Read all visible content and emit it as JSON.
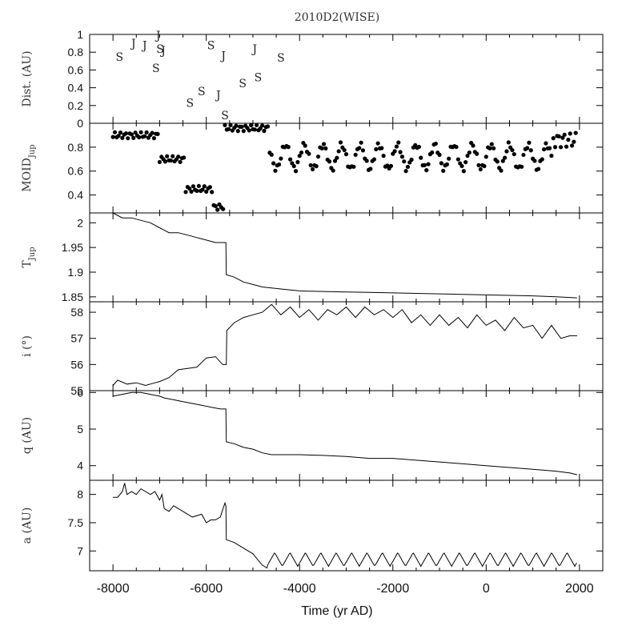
{
  "title": "2010D2(WISE)",
  "xlabel": "Time (yr AD)",
  "x_ticks": [
    "-8000",
    "-6000",
    "-4000",
    "-2000",
    "0",
    "2000"
  ],
  "chart_data": [
    {
      "type": "scatter",
      "ylabel": "Dist. (AU)",
      "ylim": [
        0,
        1
      ],
      "yticks": [
        "0",
        "0.2",
        "0.4",
        "0.6",
        "0.8",
        "1"
      ],
      "encounters": [
        {
          "x": -7860,
          "y": 0.75,
          "label": "S"
        },
        {
          "x": -7560,
          "y": 0.9,
          "label": "J"
        },
        {
          "x": -7320,
          "y": 0.88,
          "label": "J"
        },
        {
          "x": -7080,
          "y": 0.62,
          "label": "S"
        },
        {
          "x": -7030,
          "y": 0.99,
          "label": "J"
        },
        {
          "x": -6990,
          "y": 0.84,
          "label": "S"
        },
        {
          "x": -6920,
          "y": 0.82,
          "label": "J"
        },
        {
          "x": -6350,
          "y": 0.23,
          "label": "S"
        },
        {
          "x": -6100,
          "y": 0.36,
          "label": "S"
        },
        {
          "x": -5900,
          "y": 0.88,
          "label": "S"
        },
        {
          "x": -5740,
          "y": 0.32,
          "label": "J"
        },
        {
          "x": -5630,
          "y": 0.76,
          "label": "J"
        },
        {
          "x": -5600,
          "y": 0.09,
          "label": "S"
        },
        {
          "x": -5220,
          "y": 0.45,
          "label": "S"
        },
        {
          "x": -4960,
          "y": 0.84,
          "label": "J"
        },
        {
          "x": -4890,
          "y": 0.52,
          "label": "S"
        },
        {
          "x": -4400,
          "y": 0.74,
          "label": "S"
        }
      ]
    },
    {
      "type": "scatter",
      "ylabel": "MOID",
      "ylabel_sub": "Jup",
      "ylim": [
        0.25,
        1.0
      ],
      "yticks": [
        "0.4",
        "0.6",
        "0.8"
      ],
      "x_range": [
        -8000,
        1950
      ],
      "step": 40,
      "points": [
        [
          -8000,
          -7000,
          0.9,
          0.0,
          0,
          0
        ],
        [
          -7000,
          -6450,
          0.7,
          0.0,
          0,
          0
        ],
        [
          -6450,
          -5850,
          0.45,
          0.0,
          0,
          0
        ],
        [
          -5850,
          -5620,
          0.3,
          0.0,
          0,
          0
        ],
        [
          -5620,
          -4650,
          0.96,
          0.0,
          0,
          0
        ],
        [
          -4650,
          1950,
          0.72,
          0.1,
          400,
          0
        ]
      ],
      "note_points": "piecewise description: [x_start, x_end, mean_level, oscillation_amplitude, period_years, phase]"
    },
    {
      "type": "line",
      "ylabel": "T",
      "ylabel_sub": "Jup",
      "ylim": [
        1.84,
        2.02
      ],
      "yticks": [
        "1.85",
        "1.9",
        "1.95",
        "2"
      ],
      "x": [
        -8000,
        -7800,
        -7600,
        -7400,
        -7200,
        -7000,
        -6900,
        -6800,
        -6600,
        -6400,
        -6200,
        -6000,
        -5800,
        -5700,
        -5580,
        -5570,
        -5400,
        -5300,
        -5200,
        -5000,
        -4800,
        -4600,
        -4400,
        -4000,
        -3500,
        -3000,
        -2500,
        -2000,
        -1500,
        -1000,
        -500,
        0,
        500,
        1000,
        1500,
        1950
      ],
      "values": [
        2.02,
        2.01,
        2.01,
        2.005,
        2.0,
        1.99,
        1.985,
        1.98,
        1.98,
        1.975,
        1.97,
        1.965,
        1.96,
        1.96,
        1.96,
        1.895,
        1.89,
        1.885,
        1.88,
        1.875,
        1.87,
        1.868,
        1.866,
        1.862,
        1.861,
        1.86,
        1.859,
        1.858,
        1.857,
        1.856,
        1.855,
        1.854,
        1.853,
        1.852,
        1.85,
        1.848
      ]
    },
    {
      "type": "line",
      "ylabel": "i (°)",
      "ylim": [
        55,
        58.4
      ],
      "yticks": [
        "55",
        "56",
        "57",
        "58"
      ],
      "x": [
        -8000,
        -7900,
        -7700,
        -7500,
        -7300,
        -7100,
        -7000,
        -6800,
        -6600,
        -6400,
        -6200,
        -6000,
        -5800,
        -5650,
        -5570,
        -5560,
        -5400,
        -5200,
        -5000,
        -4800,
        -4600,
        -4400,
        -4200,
        -4000,
        -3800,
        -3600,
        -3400,
        -3200,
        -3000,
        -2800,
        -2600,
        -2400,
        -2200,
        -2000,
        -1800,
        -1600,
        -1400,
        -1200,
        -1000,
        -800,
        -600,
        -400,
        -200,
        0,
        200,
        400,
        600,
        800,
        1000,
        1200,
        1400,
        1600,
        1800,
        1950
      ],
      "values": [
        55.2,
        55.4,
        55.25,
        55.3,
        55.2,
        55.3,
        55.35,
        55.5,
        55.8,
        55.85,
        55.9,
        56.25,
        56.3,
        56.0,
        56.0,
        57.3,
        57.6,
        57.8,
        57.9,
        58.0,
        58.3,
        57.9,
        58.2,
        57.8,
        58.1,
        57.7,
        58.1,
        57.9,
        58.2,
        57.8,
        58.2,
        57.9,
        58.1,
        57.8,
        58.1,
        57.6,
        57.9,
        57.5,
        57.9,
        57.5,
        57.8,
        57.4,
        57.9,
        57.5,
        57.7,
        57.3,
        57.8,
        57.4,
        57.5,
        57.0,
        57.5,
        57.0,
        57.1,
        57.1
      ]
    },
    {
      "type": "line",
      "ylabel": "q (AU)",
      "ylim": [
        3.6,
        6.05
      ],
      "yticks": [
        "4",
        "5",
        "6"
      ],
      "x": [
        -8000,
        -7800,
        -7600,
        -7400,
        -7200,
        -7000,
        -6900,
        -6700,
        -6500,
        -6300,
        -6100,
        -5900,
        -5700,
        -5580,
        -5570,
        -5400,
        -5200,
        -5000,
        -4800,
        -4600,
        -4400,
        -4000,
        -3500,
        -3000,
        -2500,
        -2000,
        -1500,
        -1000,
        -500,
        0,
        500,
        1000,
        1500,
        1800,
        1950
      ],
      "values": [
        5.9,
        5.95,
        6.0,
        6.0,
        5.95,
        5.9,
        5.85,
        5.8,
        5.75,
        5.7,
        5.65,
        5.6,
        5.55,
        5.55,
        4.65,
        4.6,
        4.5,
        4.45,
        4.35,
        4.3,
        4.3,
        4.3,
        4.28,
        4.25,
        4.2,
        4.2,
        4.15,
        4.1,
        4.05,
        4.0,
        3.95,
        3.9,
        3.85,
        3.8,
        3.75
      ]
    },
    {
      "type": "line",
      "ylabel": "a (AU)",
      "ylim": [
        6.65,
        8.25
      ],
      "yticks": [
        "7",
        "7.5",
        "8"
      ],
      "x": [
        -8000,
        -7900,
        -7800,
        -7750,
        -7700,
        -7600,
        -7500,
        -7400,
        -7200,
        -7100,
        -7000,
        -6950,
        -6900,
        -6800,
        -6700,
        -6500,
        -6300,
        -6100,
        -6000,
        -5900,
        -5800,
        -5700,
        -5600,
        -5580,
        -5570,
        -5400,
        -5200,
        -5000,
        -4900,
        -4800,
        -4700
      ],
      "values": [
        7.95,
        7.95,
        8.05,
        8.2,
        8.0,
        8.05,
        8.0,
        8.1,
        8.0,
        8.05,
        7.9,
        8.0,
        7.75,
        7.7,
        7.8,
        7.7,
        7.6,
        7.65,
        7.5,
        7.55,
        7.55,
        7.6,
        7.85,
        7.8,
        7.2,
        7.15,
        7.05,
        6.95,
        6.85,
        6.75,
        6.7
      ],
      "oscillation": {
        "from": -4700,
        "to": 1950,
        "mean": 6.85,
        "amplitude": 0.12,
        "period": 330
      }
    }
  ]
}
